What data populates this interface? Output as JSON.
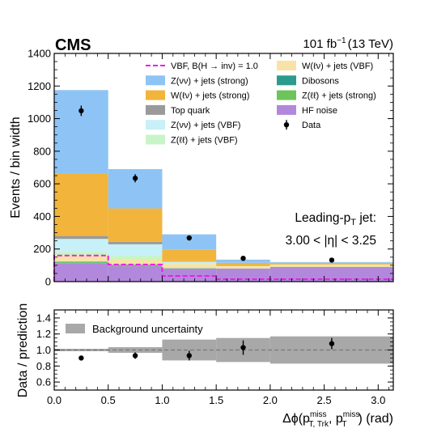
{
  "header": {
    "experiment": "CMS",
    "lumi_text": "101 fb",
    "lumi_exponent": "−1",
    "energy_text": "(13 TeV)"
  },
  "annotations": {
    "line1": "Leading-p",
    "line1_sub": "T",
    "line1_suffix": " jet:",
    "line2": "3.00 < |η| < 3.25"
  },
  "top_y_ticks": [
    "0",
    "200",
    "400",
    "600",
    "800",
    "1000",
    "1200",
    "1400"
  ],
  "ratio_y_ticks": [
    "0.6",
    "0.8",
    "1.0",
    "1.2",
    "1.4"
  ],
  "x_ticks": [
    "0.0",
    "0.5",
    "1.0",
    "1.5",
    "2.0",
    "2.5",
    "3.0"
  ],
  "top_ylabel": "Events / bin width",
  "ratio_ylabel": "Data / prediction",
  "xlabel": {
    "prefix": "Δϕ(p",
    "sub1": "T, Trk",
    "sup1": "miss",
    "mid": ", p",
    "sub2": "T",
    "sup2": "miss",
    "suffix": ") (rad)"
  },
  "legend": {
    "col1": [
      {
        "label": "VBF, B(H → inv) = 1.0",
        "kind": "dash",
        "color": "#e81ee8"
      },
      {
        "label": "Z(νν) + jets (strong)",
        "kind": "box",
        "color": "#8ec4f5"
      },
      {
        "label": "W(ℓν) + jets (strong)",
        "kind": "box",
        "color": "#f2b43a"
      },
      {
        "label": "Top quark",
        "kind": "box",
        "color": "#9a9a9a"
      },
      {
        "label": "Z(νν) + jets (VBF)",
        "kind": "box",
        "color": "#c8f0f8"
      },
      {
        "label": "Z(ℓℓ) + jets (VBF)",
        "kind": "box",
        "color": "#c8f5c8"
      }
    ],
    "col2": [
      {
        "label": "W(ℓν) + jets (VBF)",
        "kind": "box",
        "color": "#f8e2a6"
      },
      {
        "label": "Dibosons",
        "kind": "box",
        "color": "#2a9b8c"
      },
      {
        "label": "Z(ℓℓ) + jets (strong)",
        "kind": "box",
        "color": "#6cc45a"
      },
      {
        "label": "HF noise",
        "kind": "box",
        "color": "#b288dc"
      },
      {
        "label": "Data",
        "kind": "point",
        "color": "#000000"
      }
    ]
  },
  "ratio_legend": {
    "label": "Background uncertainty",
    "color": "#a8a8a8"
  },
  "chart_data": [
    {
      "type": "bar",
      "stacked": true,
      "bins": [
        [
          0.0,
          0.5
        ],
        [
          0.5,
          1.0
        ],
        [
          1.0,
          1.5
        ],
        [
          1.5,
          2.0
        ],
        [
          2.0,
          3.14
        ]
      ],
      "ylabel": "Events / bin width",
      "ylim": [
        0,
        1400
      ],
      "xlim": [
        0,
        3.14
      ],
      "series": [
        {
          "name": "HF noise",
          "color": "#b288dc",
          "values": [
            110,
            95,
            80,
            80,
            90
          ]
        },
        {
          "name": "Z(ℓℓ) + jets (strong)",
          "color": "#6cc45a",
          "values": [
            8,
            6,
            2,
            1,
            1
          ]
        },
        {
          "name": "Dibosons",
          "color": "#2a9b8c",
          "values": [
            4,
            3,
            1,
            0,
            0
          ]
        },
        {
          "name": "W(ℓν) + jets (VBF)",
          "color": "#f8e2a6",
          "values": [
            40,
            35,
            25,
            12,
            12
          ]
        },
        {
          "name": "Z(ℓℓ) + jets (VBF)",
          "color": "#c8f5c8",
          "values": [
            25,
            20,
            8,
            1,
            1
          ]
        },
        {
          "name": "Z(νν) + jets (VBF)",
          "color": "#c8f0f8",
          "values": [
            75,
            70,
            6,
            1,
            1
          ]
        },
        {
          "name": "Top quark",
          "color": "#9a9a9a",
          "values": [
            18,
            15,
            3,
            0,
            0
          ]
        },
        {
          "name": "W(ℓν) + jets (strong)",
          "color": "#f2b43a",
          "values": [
            385,
            205,
            70,
            20,
            10
          ]
        },
        {
          "name": "Z(νν) + jets (strong)",
          "color": "#8ec4f5",
          "values": [
            510,
            241,
            95,
            20,
            5
          ]
        }
      ],
      "signal": {
        "name": "VBF, B(H → inv) = 1.0",
        "color": "#e81ee8",
        "values": [
          160,
          105,
          35,
          15,
          15
        ]
      },
      "data": {
        "name": "Data",
        "x": [
          0.25,
          0.75,
          1.25,
          1.75,
          2.57
        ],
        "y": [
          1048,
          634,
          268,
          143,
          132
        ],
        "yerr": [
          32,
          25,
          16,
          12,
          11
        ]
      }
    },
    {
      "type": "scatter",
      "ylabel": "Data / prediction",
      "ylim": [
        0.5,
        1.5
      ],
      "xlim": [
        0,
        3.14
      ],
      "reference_line": 1.0,
      "uncertainty_band": {
        "name": "Background uncertainty",
        "bins": [
          [
            0.0,
            0.5
          ],
          [
            0.5,
            1.0
          ],
          [
            1.0,
            1.5
          ],
          [
            1.5,
            2.0
          ],
          [
            2.0,
            3.14
          ]
        ],
        "low": [
          0.985,
          0.965,
          0.87,
          0.85,
          0.83
        ],
        "high": [
          1.015,
          1.035,
          1.13,
          1.15,
          1.17
        ]
      },
      "points": {
        "x": [
          0.25,
          0.75,
          1.25,
          1.75,
          2.57
        ],
        "y": [
          0.9,
          0.93,
          0.93,
          1.03,
          1.08
        ],
        "yerr": [
          0.03,
          0.04,
          0.06,
          0.09,
          0.07
        ]
      }
    }
  ]
}
